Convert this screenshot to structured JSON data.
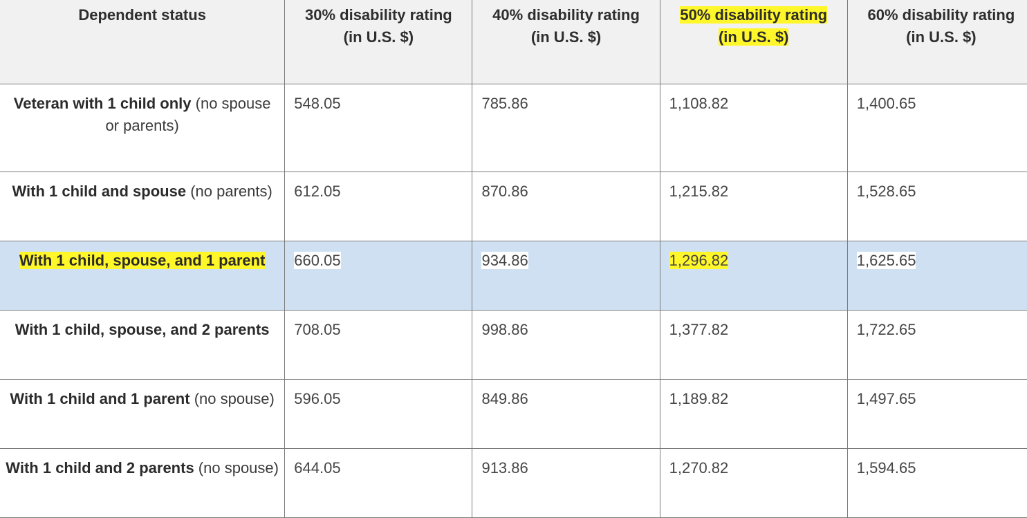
{
  "table": {
    "headers": [
      {
        "line1": "Dependent status",
        "line2": ""
      },
      {
        "line1": "30% disability rating",
        "line2": "(in U.S. $)"
      },
      {
        "line1": "40% disability rating",
        "line2": "(in U.S. $)"
      },
      {
        "line1": "50% disability rating",
        "line2": "(in U.S. $)"
      },
      {
        "line1": "60% disability rating",
        "line2": "(in U.S. $)"
      }
    ],
    "highlighted_header_index": 3,
    "highlighted_row_index": 2,
    "highlight_color": "#fff72a",
    "row_highlight_color": "#cfe0f3",
    "rows": [
      {
        "label_bold": "Veteran with 1 child only",
        "label_rest": " (no spouse or parents)",
        "values": [
          "548.05",
          "785.86",
          "1,108.82",
          "1,400.65"
        ]
      },
      {
        "label_bold": "With 1 child and spouse",
        "label_rest": " (no parents)",
        "values": [
          "612.05",
          "870.86",
          "1,215.82",
          "1,528.65"
        ]
      },
      {
        "label_bold": "With 1 child, spouse, and 1 parent",
        "label_rest": "",
        "values": [
          "660.05",
          "934.86",
          "1,296.82",
          "1,625.65"
        ]
      },
      {
        "label_bold": "With 1 child, spouse, and 2 parents",
        "label_rest": "",
        "values": [
          "708.05",
          "998.86",
          "1,377.82",
          "1,722.65"
        ]
      },
      {
        "label_bold": "With 1 child and 1 parent",
        "label_rest": " (no spouse)",
        "values": [
          "596.05",
          "849.86",
          "1,189.82",
          "1,497.65"
        ]
      },
      {
        "label_bold": "With 1 child and 2 parents",
        "label_rest": " (no spouse)",
        "values": [
          "644.05",
          "913.86",
          "1,270.82",
          "1,594.65"
        ]
      }
    ]
  }
}
